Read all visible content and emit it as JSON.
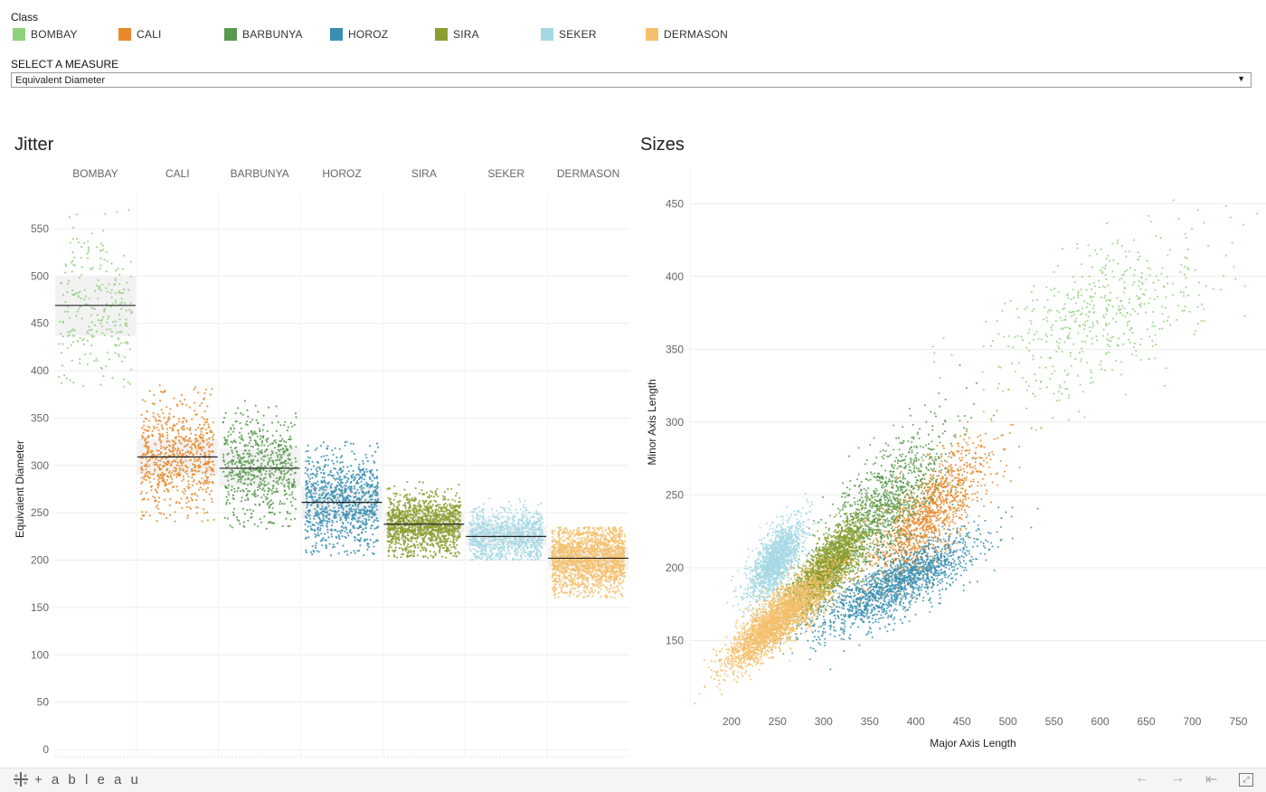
{
  "legend": {
    "title": "Class",
    "items": [
      {
        "label": "BOMBAY",
        "color": "#8fd07d"
      },
      {
        "label": "CALI",
        "color": "#e8892b"
      },
      {
        "label": "BARBUNYA",
        "color": "#579a4c"
      },
      {
        "label": "HOROZ",
        "color": "#3a8fb1"
      },
      {
        "label": "SIRA",
        "color": "#8b9e2f"
      },
      {
        "label": "SEKER",
        "color": "#a5d8e4"
      },
      {
        "label": "DERMASON",
        "color": "#f4c06c"
      }
    ]
  },
  "measure": {
    "label": "SELECT A MEASURE",
    "selected": "Equivalent Diameter"
  },
  "jitter": {
    "title": "Jitter"
  },
  "sizes": {
    "title": "Sizes"
  },
  "footer": {
    "logo_text": "+ a b l e a u",
    "logo_icon": "tableau-plus-icon",
    "buttons": [
      "undo-arrow-icon",
      "redo-arrow-icon",
      "revert-icon",
      "fullscreen-icon"
    ]
  },
  "chart_data": [
    {
      "type": "scatter",
      "subtype": "jitter-strip",
      "title": "Jitter",
      "categories": [
        "BOMBAY",
        "CALI",
        "BARBUNYA",
        "HOROZ",
        "SIRA",
        "SEKER",
        "DERMASON"
      ],
      "ylabel": "Equivalent Diameter",
      "xlabel": "",
      "ylim": [
        0,
        570
      ],
      "yticks": [
        0,
        50,
        100,
        150,
        200,
        250,
        300,
        350,
        400,
        450,
        500,
        550
      ],
      "series": [
        {
          "name": "BOMBAY",
          "color": "#8fd07d",
          "median": 469,
          "q1": 437,
          "q3": 500,
          "min": 383,
          "max": 570,
          "count": 260
        },
        {
          "name": "CALI",
          "color": "#e8892b",
          "median": 309,
          "q1": 290,
          "q3": 328,
          "min": 240,
          "max": 385,
          "count": 750
        },
        {
          "name": "BARBUNYA",
          "color": "#579a4c",
          "median": 297,
          "q1": 278,
          "q3": 318,
          "min": 232,
          "max": 385,
          "count": 650
        },
        {
          "name": "HOROZ",
          "color": "#3a8fb1",
          "median": 261,
          "q1": 243,
          "q3": 278,
          "min": 205,
          "max": 325,
          "count": 950
        },
        {
          "name": "SIRA",
          "color": "#8b9e2f",
          "median": 238,
          "q1": 228,
          "q3": 249,
          "min": 202,
          "max": 283,
          "count": 1300
        },
        {
          "name": "SEKER",
          "color": "#a5d8e4",
          "median": 225,
          "q1": 216,
          "q3": 236,
          "min": 200,
          "max": 280,
          "count": 1000
        },
        {
          "name": "DERMASON",
          "color": "#f4c06c",
          "median": 202,
          "q1": 190,
          "q3": 214,
          "min": 160,
          "max": 235,
          "count": 1700
        }
      ],
      "grid": true,
      "legend": "top"
    },
    {
      "type": "scatter",
      "title": "Sizes",
      "xlabel": "Major Axis Length",
      "ylabel": "Minor Axis Length",
      "xlim": [
        155,
        780
      ],
      "ylim": [
        105,
        475
      ],
      "xticks": [
        200,
        250,
        300,
        350,
        400,
        450,
        500,
        550,
        600,
        650,
        700,
        750
      ],
      "yticks": [
        150,
        200,
        250,
        300,
        350,
        400,
        450
      ],
      "series": [
        {
          "name": "BOMBAY",
          "color": "#8fd07d",
          "center": [
            602,
            372
          ],
          "spread": [
            60,
            24
          ],
          "slope": 0.25,
          "count": 520
        },
        {
          "name": "CALI",
          "color": "#e8892b",
          "center": [
            415,
            238
          ],
          "spread": [
            32,
            16
          ],
          "slope": 0.55,
          "count": 1300
        },
        {
          "name": "BARBUNYA",
          "color": "#579a4c",
          "center": [
            365,
            243
          ],
          "spread": [
            35,
            18
          ],
          "slope": 0.55,
          "count": 1100
        },
        {
          "name": "HOROZ",
          "color": "#3a8fb1",
          "center": [
            378,
            188
          ],
          "spread": [
            45,
            10
          ],
          "slope": 0.3,
          "count": 1600
        },
        {
          "name": "SIRA",
          "color": "#8b9e2f",
          "center": [
            302,
            198
          ],
          "spread": [
            22,
            10
          ],
          "slope": 0.6,
          "count": 2000
        },
        {
          "name": "SEKER",
          "color": "#a5d8e4",
          "center": [
            248,
            206
          ],
          "spread": [
            15,
            10
          ],
          "slope": 0.6,
          "count": 1500
        },
        {
          "name": "DERMASON",
          "color": "#f4c06c",
          "center": [
            250,
            164
          ],
          "spread": [
            28,
            9
          ],
          "slope": 0.5,
          "count": 2600
        }
      ],
      "grid": true
    }
  ]
}
